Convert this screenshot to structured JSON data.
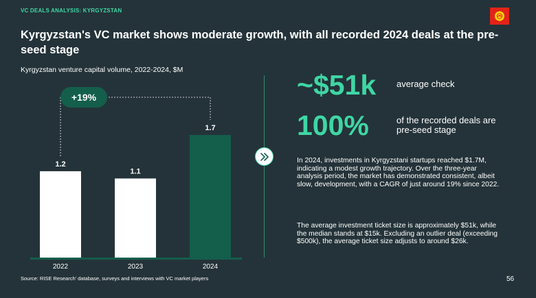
{
  "header": {
    "kicker": "VC DEALS ANALYSIS: KYRGYZSTAN",
    "title": "Kyrgyzstan's VC market shows moderate growth, with all recorded 2024 deals at the pre-seed stage",
    "flag_icon": "kyrgyzstan-flag-icon"
  },
  "chart_data": {
    "type": "bar",
    "title": "Kyrgyzstan venture capital volume, 2022-2024, $M",
    "categories": [
      "2022",
      "2023",
      "2024"
    ],
    "values": [
      1.2,
      1.1,
      1.7
    ],
    "value_labels": [
      "1.2",
      "1.1",
      "1.7"
    ],
    "bar_colors": [
      "#ffffff",
      "#ffffff",
      "#145e4c"
    ],
    "ylim": [
      0,
      1.7
    ],
    "xlabel": "",
    "ylabel": "",
    "grid": false,
    "annotation": {
      "text": "+19%",
      "from_category": "2022",
      "to_category": "2024"
    }
  },
  "stats": [
    {
      "value": "~$51k",
      "description": "average check"
    },
    {
      "value": "100%",
      "description": "of the recorded deals are pre-seed stage"
    }
  ],
  "paragraphs": [
    "In 2024, investments in Kyrgyzstani startups reached $1.7M, indicating a modest growth trajectory. Over the three-year analysis period, the market has demonstrated consistent, albeit slow, development, with a CAGR of just around 19% since 2022.",
    "The average investment ticket size is approximately $51k, while the median stands at $15k. Excluding an outlier deal (exceeding $500k), the average ticket size adjusts to around $26k."
  ],
  "footer": {
    "source": "Source: RISE Research' database, surveys and interviews with VC market players",
    "page_number": "56"
  },
  "colors": {
    "background": "#243339",
    "accent": "#3fd6a4",
    "dark_green": "#145e4c",
    "flag_red": "#e2231a",
    "flag_sun": "#ffd800"
  }
}
